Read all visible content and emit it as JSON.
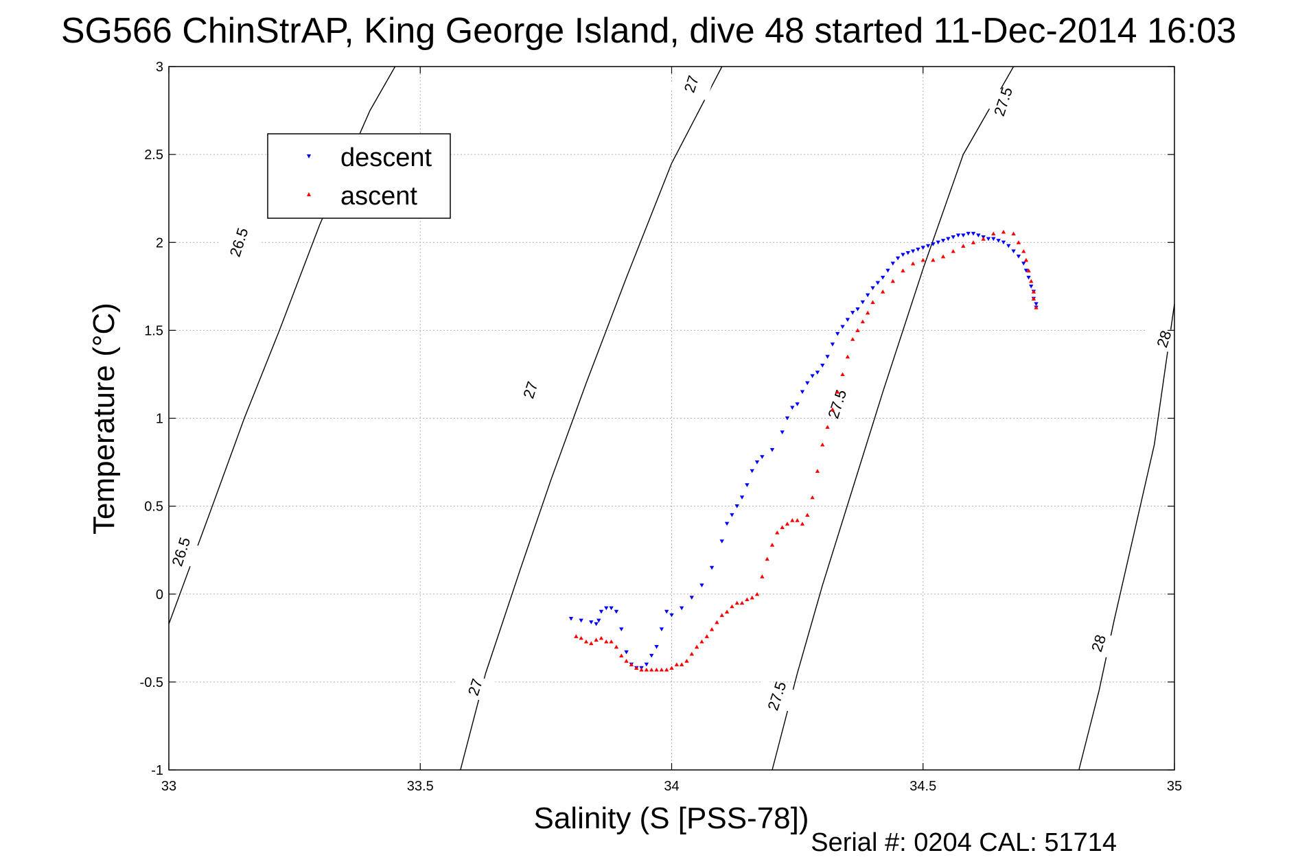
{
  "chart_data": {
    "type": "scatter",
    "title": "SG566 ChinStrAP, King George Island, dive 48 started 11-Dec-2014 16:03",
    "xlabel": "Salinity (S [PSS-78])",
    "ylabel": "Temperature (°C)",
    "xlim": [
      33,
      35
    ],
    "ylim": [
      -1,
      3
    ],
    "xticks": [
      33,
      33.5,
      34,
      34.5,
      35
    ],
    "xtick_labels": [
      "33",
      "33.5",
      "34",
      "34.5",
      "35"
    ],
    "yticks": [
      -1,
      -0.5,
      0,
      0.5,
      1,
      1.5,
      2,
      2.5,
      3
    ],
    "ytick_labels": [
      "-1",
      "-0.5",
      "0",
      "0.5",
      "1",
      "1.5",
      "2",
      "2.5",
      "3"
    ],
    "grid": true,
    "legend_position": "top-left",
    "footer": "Serial #: 0204  CAL: 51714",
    "colors": {
      "descent": "#0000ff",
      "ascent": "#ff0000",
      "contour": "#000000",
      "grid": "#b0b0b0"
    },
    "density_contours": [
      {
        "label": "26.5",
        "points": [
          [
            33.0,
            -0.17
          ],
          [
            33.08,
            0.45
          ],
          [
            33.15,
            1.0
          ],
          [
            33.22,
            1.5
          ],
          [
            33.3,
            2.1
          ],
          [
            33.4,
            2.75
          ],
          [
            33.45,
            3.0
          ]
        ]
      },
      {
        "label": "27",
        "points": [
          [
            33.58,
            -1.0
          ],
          [
            33.63,
            -0.45
          ],
          [
            33.7,
            0.15
          ],
          [
            33.76,
            0.65
          ],
          [
            33.83,
            1.2
          ],
          [
            33.91,
            1.8
          ],
          [
            34.0,
            2.45
          ],
          [
            34.1,
            3.0
          ]
        ]
      },
      {
        "label": "27.5",
        "points": [
          [
            34.2,
            -1.0
          ],
          [
            34.25,
            -0.45
          ],
          [
            34.3,
            0.05
          ],
          [
            34.36,
            0.6
          ],
          [
            34.42,
            1.15
          ],
          [
            34.5,
            1.85
          ],
          [
            34.58,
            2.5
          ],
          [
            34.68,
            3.0
          ]
        ]
      },
      {
        "label": "28",
        "points": [
          [
            34.81,
            -1.0
          ],
          [
            34.85,
            -0.55
          ],
          [
            34.88,
            -0.15
          ],
          [
            34.92,
            0.35
          ],
          [
            34.96,
            0.85
          ],
          [
            35.0,
            1.65
          ]
        ]
      }
    ],
    "contour_labels": [
      {
        "text": "26.5",
        "x": 33.14,
        "y": 2.0
      },
      {
        "text": "26.5",
        "x": 33.025,
        "y": 0.24
      },
      {
        "text": "27",
        "x": 34.04,
        "y": 2.9
      },
      {
        "text": "27",
        "x": 33.72,
        "y": 1.16
      },
      {
        "text": "27",
        "x": 33.61,
        "y": -0.53
      },
      {
        "text": "27.5",
        "x": 34.66,
        "y": 2.8
      },
      {
        "text": "27.5",
        "x": 34.33,
        "y": 1.08
      },
      {
        "text": "27.5",
        "x": 34.21,
        "y": -0.58
      },
      {
        "text": "28",
        "x": 34.98,
        "y": 1.45
      },
      {
        "text": "28",
        "x": 34.85,
        "y": -0.28
      }
    ],
    "series": [
      {
        "name": "descent",
        "marker": "triangle-down",
        "x": [
          33.8,
          33.82,
          33.84,
          33.85,
          33.855,
          33.86,
          33.87,
          33.88,
          33.89,
          33.9,
          33.91,
          33.92,
          33.93,
          33.94,
          33.95,
          33.96,
          33.97,
          33.98,
          33.99,
          34.0,
          34.02,
          34.04,
          34.06,
          34.08,
          34.1,
          34.11,
          34.12,
          34.13,
          34.14,
          34.15,
          34.16,
          34.17,
          34.18,
          34.2,
          34.22,
          34.23,
          34.24,
          34.25,
          34.26,
          34.27,
          34.28,
          34.29,
          34.3,
          34.31,
          34.32,
          34.33,
          34.34,
          34.35,
          34.36,
          34.37,
          34.38,
          34.39,
          34.4,
          34.41,
          34.42,
          34.43,
          34.44,
          34.45,
          34.46,
          34.47,
          34.48,
          34.49,
          34.5,
          34.51,
          34.52,
          34.53,
          34.54,
          34.55,
          34.56,
          34.57,
          34.58,
          34.59,
          34.6,
          34.61,
          34.62,
          34.63,
          34.64,
          34.65,
          34.66,
          34.67,
          34.68,
          34.69,
          34.7,
          34.705,
          34.71,
          34.715,
          34.72,
          34.72,
          34.725,
          34.725
        ],
        "y": [
          -0.14,
          -0.15,
          -0.16,
          -0.17,
          -0.15,
          -0.1,
          -0.08,
          -0.08,
          -0.1,
          -0.2,
          -0.33,
          -0.4,
          -0.42,
          -0.42,
          -0.4,
          -0.35,
          -0.3,
          -0.2,
          -0.1,
          -0.12,
          -0.08,
          -0.02,
          0.05,
          0.15,
          0.3,
          0.4,
          0.45,
          0.5,
          0.55,
          0.62,
          0.7,
          0.75,
          0.78,
          0.82,
          0.92,
          1.0,
          1.06,
          1.08,
          1.15,
          1.2,
          1.24,
          1.26,
          1.3,
          1.35,
          1.42,
          1.48,
          1.52,
          1.56,
          1.6,
          1.62,
          1.66,
          1.7,
          1.74,
          1.77,
          1.8,
          1.84,
          1.88,
          1.91,
          1.93,
          1.94,
          1.95,
          1.96,
          1.97,
          1.98,
          1.99,
          2.0,
          2.01,
          2.02,
          2.03,
          2.04,
          2.04,
          2.05,
          2.05,
          2.04,
          2.03,
          2.02,
          2.02,
          2.01,
          2.0,
          1.98,
          1.95,
          1.92,
          1.88,
          1.84,
          1.8,
          1.75,
          1.72,
          1.68,
          1.65,
          1.63
        ]
      },
      {
        "name": "ascent",
        "marker": "triangle-up",
        "x": [
          33.81,
          33.82,
          33.83,
          33.84,
          33.85,
          33.86,
          33.87,
          33.88,
          33.89,
          33.9,
          33.91,
          33.92,
          33.93,
          33.94,
          33.95,
          33.96,
          33.97,
          33.98,
          33.99,
          34.0,
          34.01,
          34.02,
          34.03,
          34.04,
          34.05,
          34.06,
          34.07,
          34.08,
          34.09,
          34.1,
          34.11,
          34.12,
          34.13,
          34.14,
          34.15,
          34.16,
          34.17,
          34.18,
          34.19,
          34.2,
          34.21,
          34.22,
          34.23,
          34.24,
          34.25,
          34.26,
          34.27,
          34.28,
          34.29,
          34.3,
          34.31,
          34.32,
          34.33,
          34.34,
          34.35,
          34.36,
          34.37,
          34.38,
          34.39,
          34.4,
          34.42,
          34.44,
          34.46,
          34.48,
          34.5,
          34.52,
          34.54,
          34.56,
          34.58,
          34.6,
          34.62,
          34.64,
          34.66,
          34.68,
          34.69,
          34.7,
          34.705,
          34.71,
          34.715,
          34.72,
          34.72,
          34.725
        ],
        "y": [
          -0.24,
          -0.25,
          -0.27,
          -0.28,
          -0.26,
          -0.25,
          -0.27,
          -0.27,
          -0.3,
          -0.35,
          -0.38,
          -0.4,
          -0.42,
          -0.43,
          -0.43,
          -0.43,
          -0.43,
          -0.43,
          -0.43,
          -0.42,
          -0.4,
          -0.4,
          -0.38,
          -0.34,
          -0.3,
          -0.27,
          -0.24,
          -0.2,
          -0.16,
          -0.12,
          -0.1,
          -0.07,
          -0.05,
          -0.05,
          -0.03,
          -0.02,
          0.0,
          0.1,
          0.2,
          0.28,
          0.35,
          0.38,
          0.4,
          0.42,
          0.42,
          0.4,
          0.45,
          0.55,
          0.7,
          0.85,
          0.95,
          1.05,
          1.15,
          1.25,
          1.35,
          1.45,
          1.5,
          1.55,
          1.6,
          1.66,
          1.72,
          1.78,
          1.84,
          1.88,
          1.9,
          1.9,
          1.92,
          1.95,
          1.98,
          2.0,
          2.02,
          2.05,
          2.06,
          2.05,
          2.0,
          1.95,
          1.9,
          1.84,
          1.78,
          1.72,
          1.68,
          1.63
        ]
      }
    ]
  }
}
